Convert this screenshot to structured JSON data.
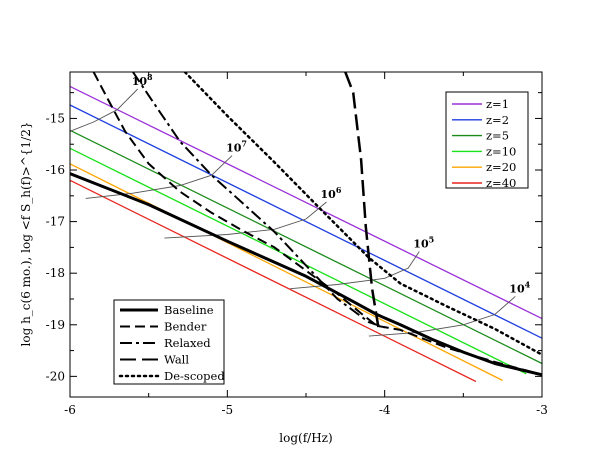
{
  "chart_data": {
    "type": "line",
    "xlabel": "log(f/Hz)",
    "ylabel": "log h_c(6 mo.),  log <f S_h(f)>^{1/2}",
    "xlim": [
      -6,
      -3
    ],
    "ylim": [
      -20.4,
      -14.1
    ],
    "x_ticks": [
      "-6",
      "-5",
      "-4",
      "-3"
    ],
    "y_ticks": [
      "-15",
      "-16",
      "-17",
      "-18",
      "-19",
      "-20"
    ],
    "x_tick_values": [
      -6,
      -5,
      -4,
      -3
    ],
    "y_tick_values": [
      -15,
      -16,
      -17,
      -18,
      -19,
      -20
    ],
    "grid": false,
    "source_series": [
      {
        "name": "z=1",
        "color": "#9b30d9",
        "x": [
          -6.0,
          -3.0
        ],
        "y": [
          -14.38,
          -18.88
        ]
      },
      {
        "name": "z=2",
        "color": "#1f3fe0",
        "x": [
          -6.0,
          -3.0
        ],
        "y": [
          -14.74,
          -19.26
        ]
      },
      {
        "name": "z=5",
        "color": "#1a8a1a",
        "x": [
          -6.0,
          -3.0
        ],
        "y": [
          -15.23,
          -19.75
        ]
      },
      {
        "name": "z=10",
        "color": "#19e219",
        "x": [
          -6.0,
          -3.1
        ],
        "y": [
          -15.58,
          -19.95
        ]
      },
      {
        "name": "z=20",
        "color": "#ffa500",
        "x": [
          -6.0,
          -3.25
        ],
        "y": [
          -15.88,
          -20.08
        ]
      },
      {
        "name": "z=40",
        "color": "#e8251f",
        "x": [
          -6.0,
          -3.42
        ],
        "y": [
          -16.2,
          -20.1
        ]
      }
    ],
    "sensitivity_curves": [
      {
        "name": "Baseline",
        "style": "solid",
        "width": 3,
        "x": [
          -6.0,
          -5.5,
          -5.0,
          -4.5,
          -4.2,
          -4.05,
          -3.9,
          -3.7,
          -3.5,
          -3.3,
          -3.0
        ],
        "y": [
          -16.07,
          -16.67,
          -17.38,
          -18.06,
          -18.55,
          -18.8,
          -19.0,
          -19.28,
          -19.53,
          -19.75,
          -19.97
        ]
      },
      {
        "name": "Bender",
        "style": "dashed",
        "width": 2,
        "x": [
          -5.85,
          -5.75,
          -5.65,
          -5.5,
          -5.3,
          -5.1,
          -4.9,
          -4.7,
          -4.5,
          -4.3,
          -4.15,
          -4.05,
          -3.9,
          -3.6,
          -3.3,
          -3.0
        ],
        "y": [
          -14.1,
          -14.68,
          -15.25,
          -15.88,
          -16.42,
          -16.83,
          -17.18,
          -17.5,
          -17.95,
          -18.4,
          -18.78,
          -19.02,
          -19.1,
          -19.45,
          -19.72,
          -19.97
        ]
      },
      {
        "name": "Relaxed",
        "style": "dashdot",
        "width": 2,
        "x": [
          -5.6,
          -5.45,
          -5.3,
          -5.1,
          -4.9,
          -4.7,
          -4.5,
          -4.3,
          -4.1,
          -4.0
        ],
        "y": [
          -14.1,
          -14.78,
          -15.45,
          -16.1,
          -16.65,
          -17.2,
          -17.85,
          -18.5,
          -18.95,
          -19.05
        ]
      },
      {
        "name": "Wall",
        "style": "longdash",
        "width": 2.5,
        "x": [
          -4.25,
          -4.2,
          -4.15,
          -4.12,
          -4.08,
          -4.04
        ],
        "y": [
          -14.1,
          -14.5,
          -15.8,
          -17.1,
          -18.3,
          -19.05
        ]
      },
      {
        "name": "De-scoped",
        "style": "dotted",
        "width": 2.5,
        "x": [
          -5.27,
          -5.0,
          -4.7,
          -4.4,
          -4.1,
          -3.9,
          -3.6,
          -3.3,
          -3.0
        ],
        "y": [
          -14.1,
          -14.95,
          -15.85,
          -16.78,
          -17.7,
          -18.2,
          -18.65,
          -19.08,
          -19.58
        ]
      }
    ],
    "mass_tracks": [
      {
        "label": "10",
        "exp": "8",
        "x": [
          -6.0,
          -5.85,
          -5.7,
          -5.57
        ],
        "y": [
          -15.25,
          -15.07,
          -14.83,
          -14.43
        ]
      },
      {
        "label": "10",
        "exp": "7",
        "x": [
          -5.9,
          -5.6,
          -5.3,
          -5.1,
          -4.97
        ],
        "y": [
          -16.55,
          -16.45,
          -16.3,
          -16.1,
          -15.72
        ]
      },
      {
        "label": "10",
        "exp": "6",
        "x": [
          -5.4,
          -5.0,
          -4.7,
          -4.5,
          -4.37
        ],
        "y": [
          -17.32,
          -17.25,
          -17.15,
          -16.95,
          -16.62
        ]
      },
      {
        "label": "10",
        "exp": "5",
        "x": [
          -4.6,
          -4.3,
          -4.0,
          -3.85,
          -3.78
        ],
        "y": [
          -18.3,
          -18.22,
          -18.1,
          -17.9,
          -17.58
        ]
      },
      {
        "label": "10",
        "exp": "4",
        "x": [
          -4.1,
          -3.8,
          -3.5,
          -3.3,
          -3.17
        ],
        "y": [
          -19.22,
          -19.15,
          -19.0,
          -18.8,
          -18.45
        ]
      }
    ],
    "legend_sources": {
      "placement": "top-right",
      "entries": [
        {
          "label": "z=1",
          "color": "#9b30d9"
        },
        {
          "label": "z=2",
          "color": "#1f3fe0"
        },
        {
          "label": "z=5",
          "color": "#1a8a1a"
        },
        {
          "label": "z=10",
          "color": "#19e219"
        },
        {
          "label": "z=20",
          "color": "#ffa500"
        },
        {
          "label": "z=40",
          "color": "#e8251f"
        }
      ]
    },
    "legend_curves": {
      "placement": "bottom-left",
      "entries": [
        {
          "label": "Baseline",
          "style": "solid"
        },
        {
          "label": "Bender",
          "style": "dashed"
        },
        {
          "label": "Relaxed",
          "style": "dashdot"
        },
        {
          "label": "Wall",
          "style": "longdash"
        },
        {
          "label": "De-scoped",
          "style": "dotted"
        }
      ]
    }
  }
}
